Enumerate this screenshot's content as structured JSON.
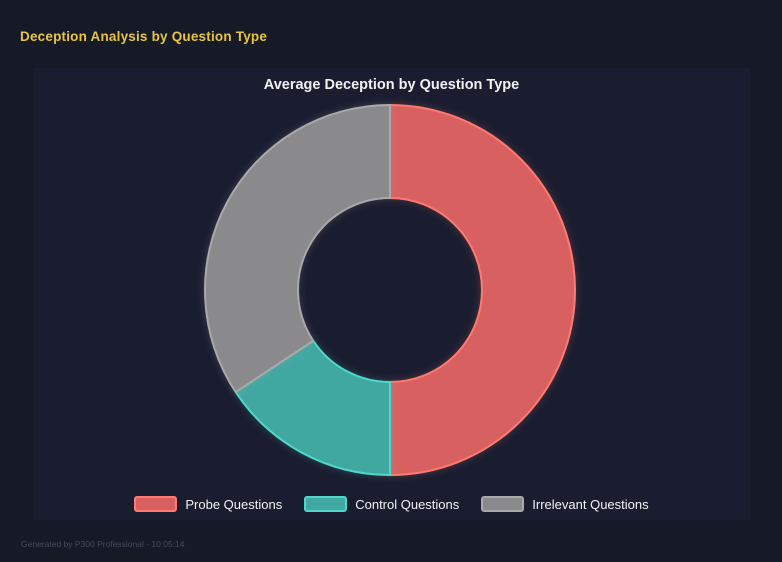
{
  "header": {
    "title": "Deception Analysis by Question Type"
  },
  "colors": {
    "page_bg": "#161a27",
    "panel_bg": "#1a1d30",
    "accent_yellow": "#e9c53c",
    "text_white": "#f2f2f4",
    "footer_text": "#454b5e"
  },
  "chart_data": {
    "type": "pie",
    "donut": true,
    "title": "Average Deception by Question Type",
    "categories": [
      "Probe Questions",
      "Control Questions",
      "Irrelevant Questions"
    ],
    "values": [
      50.0,
      15.7,
      34.3
    ],
    "values_note": "percent of ring, estimated from arc angles; no numeric labels shown",
    "colors": [
      "#d96060",
      "#41a8a1",
      "#8a8a8d"
    ],
    "border_colors": [
      "#ff7a70",
      "#4fd8ca",
      "#a9a9ab"
    ],
    "legend_position": "bottom",
    "start_angle_deg": 0,
    "clockwise": true,
    "cutout_ratio": 0.5
  },
  "footer": {
    "text": "Generated by P300 Professional - 10:05:14"
  }
}
